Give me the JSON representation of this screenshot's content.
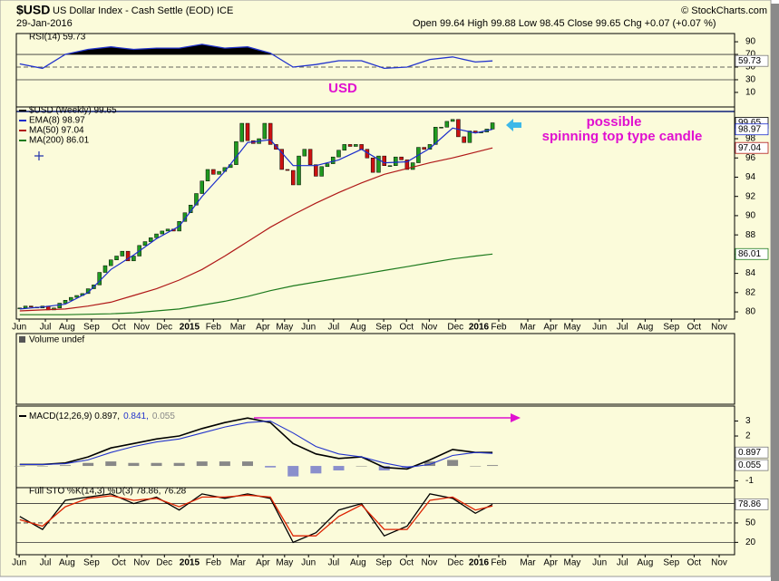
{
  "header": {
    "symbol": "$USD",
    "name": "US Dollar Index - Cash Settle (EOD) ICE",
    "date": "29-Jan-2016",
    "quote": "Open 99.64 High 99.88 Low 98.45 Close 99.65 Chg +0.07 (+0.07 %)",
    "credit": "© StockCharts.com"
  },
  "annotations": {
    "usd": "USD",
    "note_1": "possible",
    "note_2": "spinning top type candle"
  },
  "chart_data": [
    {
      "type": "line",
      "title": "RSI(14) 59.73",
      "xlim": [
        -0.6,
        125.5
      ],
      "ylim": [
        -13,
        103
      ],
      "yticks": [
        10,
        30,
        50,
        70,
        90
      ],
      "hlines": [
        70,
        50,
        30
      ],
      "series": [
        {
          "color": "#2233cc",
          "end_label": "59.73",
          "x": [
            0,
            4,
            8,
            12,
            16,
            20,
            24,
            28,
            32,
            36,
            40,
            44,
            48,
            52,
            56,
            60,
            64,
            68,
            72,
            76,
            80,
            83
          ],
          "values": [
            55,
            48,
            70,
            78,
            82,
            78,
            80,
            80,
            86,
            80,
            82,
            72,
            50,
            54,
            60,
            60,
            48,
            50,
            62,
            66,
            58,
            59.73
          ]
        }
      ]
    },
    {
      "type": "candlestick",
      "title": "$USD (Weekly) 99.65",
      "end_label": "99.65",
      "up_color": "#1f9a1f",
      "down_color": "#cc1111",
      "xlim": [
        -0.6,
        125.5
      ],
      "ylim": [
        79.25,
        101.3
      ],
      "yticks": [
        80,
        82,
        84,
        86,
        88,
        90,
        92,
        94,
        96,
        98
      ],
      "xticks": [
        {
          "value": -0.1,
          "label": "Jun"
        },
        {
          "value": 4.5,
          "label": "Jul"
        },
        {
          "value": 8.3,
          "label": "Aug"
        },
        {
          "value": 12.6,
          "label": "Sep"
        },
        {
          "value": 17.4,
          "label": "Oct"
        },
        {
          "value": 21.4,
          "label": "Nov"
        },
        {
          "value": 25.4,
          "label": "Dec"
        },
        {
          "value": 29.8,
          "label": "2015"
        },
        {
          "value": 34.0,
          "label": "Feb"
        },
        {
          "value": 38.3,
          "label": "Mar"
        },
        {
          "value": 42.7,
          "label": "Apr"
        },
        {
          "value": 46.5,
          "label": "May"
        },
        {
          "value": 50.7,
          "label": "Jun"
        },
        {
          "value": 55.1,
          "label": "Jul"
        },
        {
          "value": 59.4,
          "label": "Aug"
        },
        {
          "value": 63.9,
          "label": "Sep"
        },
        {
          "value": 67.9,
          "label": "Oct"
        },
        {
          "value": 71.9,
          "label": "Nov"
        },
        {
          "value": 76.5,
          "label": "Dec"
        },
        {
          "value": 80.6,
          "label": "2016"
        },
        {
          "value": 84.1,
          "label": "Feb"
        },
        {
          "value": 89.2,
          "label": "Mar"
        },
        {
          "value": 93.2,
          "label": "Apr"
        },
        {
          "value": 97.0,
          "label": "May"
        },
        {
          "value": 101.8,
          "label": "Jun"
        },
        {
          "value": 105.8,
          "label": "Jul"
        },
        {
          "value": 109.8,
          "label": "Aug"
        },
        {
          "value": 114.4,
          "label": "Sep"
        },
        {
          "value": 118.4,
          "label": "Oct"
        },
        {
          "value": 122.8,
          "label": "Nov"
        }
      ],
      "values": [
        80.4,
        80.6,
        80.5,
        80.4,
        80.6,
        80.2,
        80.4,
        80.9,
        81.2,
        81.5,
        81.7,
        81.9,
        82.4,
        82.8,
        84.1,
        84.8,
        85.4,
        85.8,
        86.3,
        85.3,
        85.8,
        86.9,
        87.3,
        87.7,
        88.1,
        88.4,
        88.6,
        88.4,
        89.4,
        90.3,
        91.1,
        92.3,
        93.6,
        94.8,
        94.3,
        94.6,
        95.0,
        95.3,
        97.7,
        99.6,
        97.8,
        97.5,
        98.0,
        99.6,
        97.4,
        96.9,
        94.8,
        94.7,
        93.2,
        96.2,
        96.9,
        95.3,
        94.1,
        95.1,
        95.4,
        96.1,
        96.8,
        97.4,
        97.2,
        97.4,
        96.9,
        96.0,
        94.5,
        96.2,
        95.2,
        95.2,
        96.1,
        95.8,
        94.8,
        95.5,
        97.1,
        96.9,
        97.4,
        99.2,
        99.2,
        99.8,
        100.0,
        98.2,
        97.6,
        98.8,
        98.6,
        98.7,
        99.0,
        99.65
      ],
      "series": [
        {
          "name": "EMA(8) 98.97",
          "color": "#1a2ccc",
          "end_label": "98.97",
          "x": [
            0,
            4,
            8,
            12,
            16,
            20,
            24,
            28,
            32,
            36,
            40,
            44,
            48,
            52,
            56,
            60,
            64,
            68,
            72,
            76,
            80,
            83
          ],
          "values": [
            80.3,
            80.5,
            80.8,
            82.0,
            84.4,
            85.9,
            87.6,
            88.9,
            92.0,
            94.6,
            97.6,
            97.9,
            95.2,
            95.2,
            95.8,
            96.9,
            95.5,
            95.6,
            97.0,
            99.1,
            98.6,
            98.97
          ]
        },
        {
          "name": "MA(50) 97.04",
          "color": "#b01818",
          "end_label": "97.04",
          "x": [
            0,
            4,
            8,
            12,
            16,
            20,
            24,
            28,
            32,
            36,
            40,
            44,
            48,
            52,
            56,
            60,
            64,
            68,
            72,
            76,
            80,
            83
          ],
          "values": [
            80.1,
            80.2,
            80.3,
            80.6,
            81.0,
            81.7,
            82.4,
            83.3,
            84.4,
            85.8,
            87.3,
            88.8,
            90.1,
            91.3,
            92.4,
            93.4,
            94.3,
            94.9,
            95.5,
            96.0,
            96.6,
            97.04
          ]
        },
        {
          "name": "MA(200) 86.01",
          "color": "#1d7a1d",
          "end_label": "86.01",
          "x": [
            0,
            4,
            8,
            12,
            16,
            20,
            24,
            28,
            32,
            36,
            40,
            44,
            48,
            52,
            56,
            60,
            64,
            68,
            72,
            76,
            80,
            83
          ],
          "values": [
            79.7,
            79.7,
            79.7,
            79.75,
            79.8,
            79.9,
            80.1,
            80.3,
            80.7,
            81.1,
            81.6,
            82.2,
            82.7,
            83.1,
            83.5,
            83.9,
            84.3,
            84.7,
            85.1,
            85.5,
            85.8,
            86.01
          ]
        }
      ]
    },
    {
      "type": "volume",
      "title": "Volume undef",
      "xlim": [
        -0.6,
        125.5
      ]
    },
    {
      "type": "macd",
      "xlim": [
        -0.6,
        125.5
      ],
      "ylim": [
        -1.45,
        4.0
      ],
      "yticks": [
        -1,
        2,
        3
      ],
      "series": [
        {
          "name": "MACD(12,26,9) 0.897,",
          "color": "#000000",
          "end_label": "0.897",
          "x": [
            0,
            4,
            8,
            12,
            16,
            20,
            24,
            28,
            32,
            36,
            40,
            44,
            48,
            52,
            56,
            60,
            64,
            68,
            72,
            76,
            80,
            83
          ],
          "values": [
            0.1,
            0.1,
            0.2,
            0.6,
            1.2,
            1.5,
            1.8,
            2.0,
            2.5,
            2.9,
            3.2,
            2.9,
            1.5,
            0.8,
            0.5,
            0.6,
            -0.1,
            -0.2,
            0.4,
            1.1,
            0.9,
            0.897
          ]
        },
        {
          "name": "0.841,",
          "color": "#2233cc",
          "x": [
            0,
            4,
            8,
            12,
            16,
            20,
            24,
            28,
            32,
            36,
            40,
            44,
            48,
            52,
            56,
            60,
            64,
            68,
            72,
            76,
            80,
            83
          ],
          "values": [
            0.1,
            0.1,
            0.15,
            0.4,
            0.9,
            1.3,
            1.6,
            1.8,
            2.2,
            2.6,
            2.9,
            3.0,
            2.2,
            1.3,
            0.8,
            0.6,
            0.2,
            -0.1,
            0.1,
            0.7,
            0.9,
            0.841
          ]
        }
      ],
      "histogram": {
        "name": "0.055",
        "color": "#888888",
        "neg_color": "#8a8fcc",
        "end_label": "0.055",
        "x": [
          0,
          4,
          8,
          12,
          16,
          20,
          24,
          28,
          32,
          36,
          40,
          44,
          48,
          52,
          56,
          60,
          64,
          68,
          72,
          76,
          80,
          83
        ],
        "values": [
          0,
          0,
          0.05,
          0.2,
          0.3,
          0.2,
          0.2,
          0.2,
          0.3,
          0.3,
          0.3,
          -0.1,
          -0.7,
          -0.5,
          -0.3,
          0,
          -0.3,
          -0.1,
          0.3,
          0.4,
          0,
          0.055
        ]
      }
    },
    {
      "type": "line",
      "title": "Full STO %K(14,3) %D(3) 78.86, 76.28",
      "xlim": [
        -0.6,
        125.5
      ],
      "ylim": [
        0.9,
        104.6
      ],
      "yticks": [
        20,
        50
      ],
      "hlines": [
        80,
        50,
        20
      ],
      "xticks": [
        {
          "value": -0.1,
          "label": "Jun"
        },
        {
          "value": 4.5,
          "label": "Jul"
        },
        {
          "value": 8.3,
          "label": "Aug"
        },
        {
          "value": 12.6,
          "label": "Sep"
        },
        {
          "value": 17.4,
          "label": "Oct"
        },
        {
          "value": 21.4,
          "label": "Nov"
        },
        {
          "value": 25.4,
          "label": "Dec"
        },
        {
          "value": 29.8,
          "label": "2015"
        },
        {
          "value": 34.0,
          "label": "Feb"
        },
        {
          "value": 38.3,
          "label": "Mar"
        },
        {
          "value": 42.7,
          "label": "Apr"
        },
        {
          "value": 46.5,
          "label": "May"
        },
        {
          "value": 50.7,
          "label": "Jun"
        },
        {
          "value": 55.1,
          "label": "Jul"
        },
        {
          "value": 59.4,
          "label": "Aug"
        },
        {
          "value": 63.9,
          "label": "Sep"
        },
        {
          "value": 67.9,
          "label": "Oct"
        },
        {
          "value": 71.9,
          "label": "Nov"
        },
        {
          "value": 76.5,
          "label": "Dec"
        },
        {
          "value": 80.6,
          "label": "2016"
        },
        {
          "value": 84.1,
          "label": "Feb"
        },
        {
          "value": 89.2,
          "label": "Mar"
        },
        {
          "value": 93.2,
          "label": "Apr"
        },
        {
          "value": 97.0,
          "label": "May"
        },
        {
          "value": 101.8,
          "label": "Jun"
        },
        {
          "value": 105.8,
          "label": "Jul"
        },
        {
          "value": 109.8,
          "label": "Aug"
        },
        {
          "value": 114.4,
          "label": "Sep"
        },
        {
          "value": 118.4,
          "label": "Oct"
        },
        {
          "value": 122.8,
          "label": "Nov"
        }
      ],
      "series": [
        {
          "color": "#000000",
          "end_label": "78.86",
          "x": [
            0,
            4,
            8,
            12,
            16,
            20,
            24,
            28,
            32,
            36,
            40,
            44,
            48,
            52,
            56,
            60,
            64,
            68,
            72,
            76,
            80,
            83
          ],
          "values": [
            60,
            40,
            85,
            90,
            95,
            80,
            90,
            70,
            95,
            88,
            95,
            88,
            20,
            35,
            70,
            80,
            30,
            45,
            95,
            88,
            65,
            78.86
          ]
        },
        {
          "color": "#dd2200",
          "x": [
            0,
            4,
            8,
            12,
            16,
            20,
            24,
            28,
            32,
            36,
            40,
            44,
            48,
            52,
            56,
            60,
            64,
            68,
            72,
            76,
            80,
            83
          ],
          "values": [
            55,
            45,
            75,
            88,
            92,
            85,
            88,
            75,
            90,
            90,
            93,
            90,
            30,
            30,
            60,
            78,
            40,
            40,
            85,
            90,
            70,
            76.28
          ]
        }
      ]
    }
  ]
}
